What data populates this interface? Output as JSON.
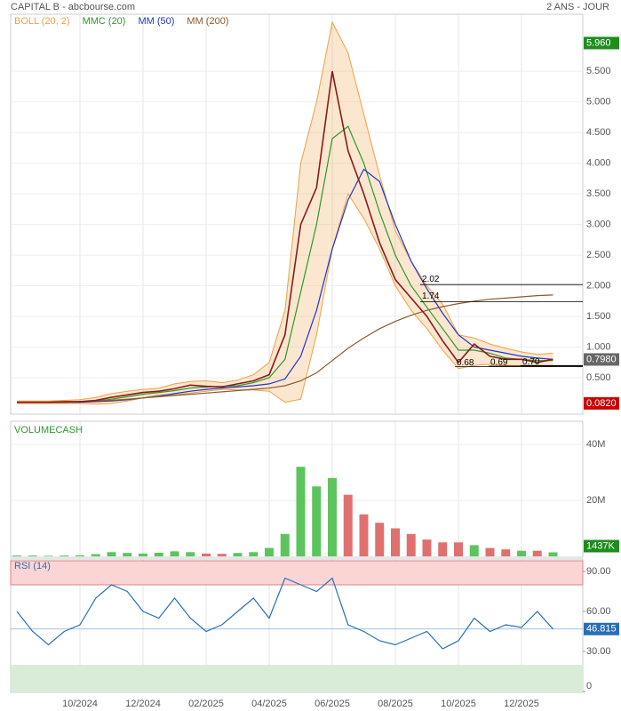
{
  "header": {
    "title": "CAPITAL B - abcbourse.com",
    "period": "2 ANS - JOUR"
  },
  "chart_data": [
    {
      "type": "line",
      "color": "#8b1a1a",
      "values": [
        0.1,
        0.1,
        0.1,
        0.11,
        0.11,
        0.13,
        0.18,
        0.22,
        0.26,
        0.28,
        0.32,
        0.38,
        0.36,
        0.35,
        0.4,
        0.45,
        0.55,
        1.2,
        3.0,
        3.6,
        5.5,
        4.2,
        3.5,
        2.7,
        2.1,
        1.8,
        1.5,
        1.1,
        0.75,
        1.05,
        0.85,
        0.8,
        0.8,
        0.75,
        0.8
      ],
      "bands": [
        {
          "name": "BOLL (20, 2)",
          "color": "#f0a040",
          "upper": [
            0.12,
            0.12,
            0.12,
            0.13,
            0.14,
            0.18,
            0.24,
            0.28,
            0.31,
            0.33,
            0.4,
            0.44,
            0.45,
            0.42,
            0.46,
            0.55,
            0.75,
            1.6,
            4.0,
            5.0,
            6.3,
            5.8,
            4.8,
            3.8,
            2.9,
            2.4,
            2.0,
            1.7,
            1.2,
            1.15,
            1.05,
            0.98,
            0.92,
            0.88,
            0.9
          ],
          "lower": [
            0.08,
            0.08,
            0.08,
            0.08,
            0.08,
            0.07,
            0.08,
            0.12,
            0.17,
            0.22,
            0.22,
            0.25,
            0.28,
            0.31,
            0.3,
            0.3,
            0.28,
            0.1,
            0.15,
            1.2,
            2.6,
            3.5,
            3.1,
            2.6,
            2.0,
            1.6,
            1.3,
            0.95,
            0.65,
            0.7,
            0.72,
            0.7,
            0.7,
            0.7,
            0.68
          ]
        }
      ],
      "series": [
        {
          "name": "MMC (20)",
          "color": "#2a9a2a",
          "values": [
            0.1,
            0.1,
            0.1,
            0.1,
            0.11,
            0.12,
            0.15,
            0.19,
            0.23,
            0.26,
            0.29,
            0.33,
            0.35,
            0.36,
            0.37,
            0.42,
            0.5,
            0.8,
            1.9,
            3.0,
            4.4,
            4.6,
            4.0,
            3.2,
            2.5,
            2.0,
            1.65,
            1.3,
            0.95,
            0.95,
            0.9,
            0.82,
            0.8,
            0.78,
            0.78
          ]
        },
        {
          "name": "MM (50)",
          "color": "#2233cc",
          "values": [
            0.1,
            0.1,
            0.1,
            0.1,
            0.1,
            0.11,
            0.12,
            0.14,
            0.17,
            0.2,
            0.24,
            0.28,
            0.31,
            0.33,
            0.35,
            0.37,
            0.4,
            0.48,
            0.85,
            1.6,
            2.6,
            3.4,
            3.9,
            3.7,
            3.0,
            2.4,
            1.95,
            1.55,
            1.2,
            1.0,
            0.95,
            0.9,
            0.85,
            0.82,
            0.8
          ]
        },
        {
          "name": "MM (200)",
          "color": "#8b5a2b",
          "values": [
            0.1,
            0.1,
            0.1,
            0.1,
            0.11,
            0.12,
            0.13,
            0.15,
            0.17,
            0.19,
            0.21,
            0.23,
            0.25,
            0.27,
            0.29,
            0.31,
            0.33,
            0.37,
            0.45,
            0.58,
            0.78,
            0.98,
            1.15,
            1.3,
            1.42,
            1.52,
            1.6,
            1.66,
            1.71,
            1.75,
            1.78,
            1.8,
            1.82,
            1.84,
            1.85
          ]
        }
      ],
      "ylim": [
        0,
        6.3
      ],
      "yticks": [
        {
          "value": 0.5,
          "label": "0.500"
        },
        {
          "value": 1,
          "label": "1.000"
        },
        {
          "value": 1.5,
          "label": "1.500"
        },
        {
          "value": 2,
          "label": "2.000"
        },
        {
          "value": 2.5,
          "label": "2.500"
        },
        {
          "value": 3,
          "label": "3.000"
        },
        {
          "value": 3.5,
          "label": "3.500"
        },
        {
          "value": 4,
          "label": "4.000"
        },
        {
          "value": 4.5,
          "label": "4.500"
        },
        {
          "value": 5,
          "label": "5.000"
        },
        {
          "value": 5.5,
          "label": "5.500"
        }
      ],
      "levels": [
        {
          "value": 2.02,
          "label": "2.02"
        },
        {
          "value": 1.74,
          "label": "1.74"
        },
        {
          "value": 0.68,
          "label": "0.68"
        },
        {
          "value": 0.69,
          "label": "0.69"
        },
        {
          "value": 0.7,
          "label": "0.70"
        }
      ],
      "price_labels": [
        {
          "value": 5.96,
          "label": "5.960",
          "color": "#1e8c1e"
        },
        {
          "value": 0.798,
          "label": "0.7980",
          "color": "#666666"
        },
        {
          "value": 0.082,
          "label": "0.0820",
          "color": "#cc0000"
        }
      ]
    },
    {
      "type": "bar",
      "title": "VOLUMECASH",
      "up_color": "#5cc45c",
      "down_color": "#e07070",
      "values": [
        300000,
        300000,
        200000,
        300000,
        400000,
        800000,
        1500000,
        1200000,
        1000000,
        1300000,
        1800000,
        1500000,
        1000000,
        900000,
        1200000,
        1500000,
        3000000,
        8000000,
        32000000,
        25000000,
        28000000,
        22000000,
        15000000,
        12000000,
        10000000,
        8000000,
        6000000,
        5000000,
        5000000,
        4000000,
        3000000,
        2500000,
        2000000,
        2000000,
        1437000
      ],
      "ylim": [
        0,
        47000000
      ],
      "yticks": [
        {
          "value": 20000000,
          "label": "20M"
        },
        {
          "value": 40000000,
          "label": "40M"
        }
      ],
      "last_label": {
        "value": 1437000,
        "label": "1437K",
        "color": "#1e8c1e"
      }
    },
    {
      "type": "line",
      "title": "RSI (14)",
      "color": "#2a6fb5",
      "categories": [
        null,
        null,
        null,
        null,
        "10/2024",
        null,
        null,
        null,
        "12/2024",
        null,
        null,
        null,
        "02/2025",
        null,
        null,
        null,
        "04/2025",
        null,
        null,
        null,
        "06/2025",
        null,
        null,
        null,
        "08/2025",
        null,
        null,
        null,
        "10/2025",
        null,
        null,
        null,
        "12/2025",
        null,
        null
      ],
      "values": [
        60,
        45,
        35,
        45,
        50,
        70,
        80,
        75,
        60,
        55,
        70,
        55,
        45,
        50,
        60,
        70,
        55,
        85,
        80,
        75,
        85,
        50,
        45,
        38,
        35,
        40,
        45,
        32,
        38,
        55,
        45,
        50,
        48,
        60,
        46.815
      ],
      "ylim": [
        0,
        98
      ],
      "yticks": [
        0,
        {
          "value": 30,
          "label": "30.00"
        },
        {
          "value": 60,
          "label": "60.00"
        },
        {
          "value": 90,
          "label": "90.00"
        }
      ],
      "zones": [
        {
          "from": 80,
          "to": 98,
          "color": "#fbd5d5"
        },
        {
          "from": 0,
          "to": 20,
          "color": "#d8ecd8"
        }
      ],
      "last_label": {
        "value": 46.815,
        "label": "46.815",
        "color": "#2a6fb5"
      }
    }
  ]
}
